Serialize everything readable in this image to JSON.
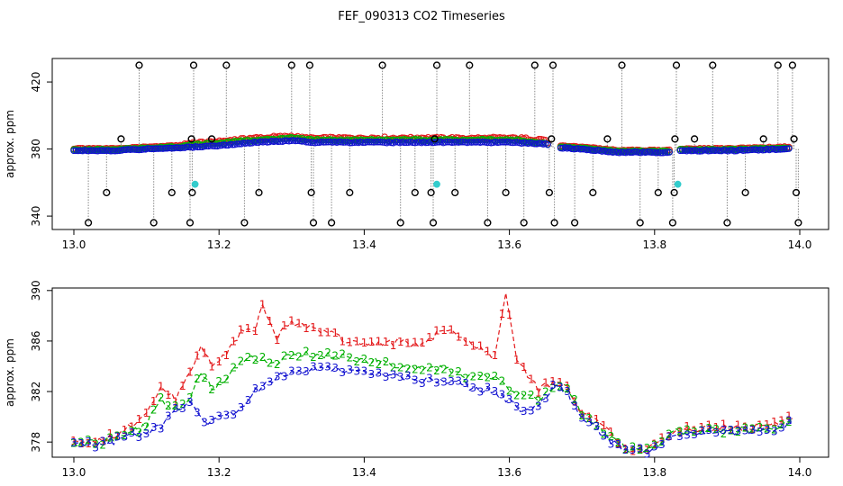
{
  "title": "FEF_090313  CO2 Timeseries",
  "colors": {
    "s1": "#e41a1c",
    "s2": "#00b000",
    "s3": "#1010d0",
    "black": "#000000",
    "cyan": "#33cccc",
    "guide": "#888888"
  },
  "chart_data": [
    {
      "type": "scatter",
      "ylabel": "approx. ppm",
      "xlim": [
        13.0,
        14.0
      ],
      "ylim": [
        332,
        434
      ],
      "x_ticks": [
        13.0,
        13.2,
        13.4,
        13.6,
        13.8,
        14.0
      ],
      "x_tick_labels": [
        "13.0",
        "13.2",
        "13.4",
        "13.6",
        "13.8",
        "14.0"
      ],
      "y_ticks": [
        340,
        380,
        420
      ],
      "y_tick_labels": [
        "340",
        "380",
        "420"
      ],
      "grid": false,
      "legend": "none",
      "outliers": [
        [
          13.02,
          336
        ],
        [
          13.045,
          354
        ],
        [
          13.065,
          386
        ],
        [
          13.09,
          430
        ],
        [
          13.11,
          336
        ],
        [
          13.135,
          354
        ],
        [
          13.16,
          336
        ],
        [
          13.163,
          354
        ],
        [
          13.165,
          430
        ],
        [
          13.162,
          386
        ],
        [
          13.19,
          386
        ],
        [
          13.21,
          430
        ],
        [
          13.235,
          336
        ],
        [
          13.255,
          354
        ],
        [
          13.3,
          430
        ],
        [
          13.325,
          430
        ],
        [
          13.33,
          336
        ],
        [
          13.327,
          354
        ],
        [
          13.355,
          336
        ],
        [
          13.38,
          354
        ],
        [
          13.425,
          430
        ],
        [
          13.45,
          336
        ],
        [
          13.47,
          354
        ],
        [
          13.495,
          336
        ],
        [
          13.5,
          430
        ],
        [
          13.492,
          354
        ],
        [
          13.497,
          386
        ],
        [
          13.525,
          354
        ],
        [
          13.545,
          430
        ],
        [
          13.57,
          336
        ],
        [
          13.595,
          354
        ],
        [
          13.62,
          336
        ],
        [
          13.635,
          430
        ],
        [
          13.655,
          354
        ],
        [
          13.66,
          430
        ],
        [
          13.662,
          336
        ],
        [
          13.658,
          386
        ],
        [
          13.69,
          336
        ],
        [
          13.715,
          354
        ],
        [
          13.735,
          386
        ],
        [
          13.755,
          430
        ],
        [
          13.78,
          336
        ],
        [
          13.805,
          354
        ],
        [
          13.825,
          336
        ],
        [
          13.83,
          430
        ],
        [
          13.827,
          354
        ],
        [
          13.828,
          386
        ],
        [
          13.855,
          386
        ],
        [
          13.88,
          430
        ],
        [
          13.9,
          336
        ],
        [
          13.925,
          354
        ],
        [
          13.95,
          386
        ],
        [
          13.97,
          430
        ],
        [
          13.99,
          430
        ],
        [
          13.995,
          354
        ],
        [
          13.998,
          336
        ],
        [
          13.992,
          386
        ]
      ],
      "cyan_points": [
        [
          13.167,
          359
        ],
        [
          13.5,
          359
        ],
        [
          13.832,
          359
        ]
      ]
    },
    {
      "type": "line",
      "ylabel": "approx. ppm",
      "xlim": [
        13.0,
        14.0
      ],
      "ylim": [
        376.8,
        390.2
      ],
      "x_ticks": [
        13.0,
        13.2,
        13.4,
        13.6,
        13.8,
        14.0
      ],
      "x_tick_labels": [
        "13.0",
        "13.2",
        "13.4",
        "13.6",
        "13.8",
        "14.0"
      ],
      "y_ticks": [
        378,
        382,
        386,
        390
      ],
      "y_tick_labels": [
        "378",
        "382",
        "386",
        "390"
      ],
      "grid": false,
      "legend": "none",
      "series": [
        {
          "marker": "1",
          "color_key": "s1",
          "knots": [
            [
              13.0,
              377.9
            ],
            [
              13.04,
              378.2
            ],
            [
              13.07,
              378.9
            ],
            [
              13.1,
              380.2
            ],
            [
              13.12,
              382.5
            ],
            [
              13.14,
              381.3
            ],
            [
              13.16,
              383.5
            ],
            [
              13.175,
              385.7
            ],
            [
              13.19,
              384.2
            ],
            [
              13.21,
              385.0
            ],
            [
              13.23,
              386.7
            ],
            [
              13.25,
              386.8
            ],
            [
              13.26,
              388.9
            ],
            [
              13.28,
              386.3
            ],
            [
              13.3,
              387.6
            ],
            [
              13.32,
              387.0
            ],
            [
              13.35,
              386.9
            ],
            [
              13.38,
              385.9
            ],
            [
              13.42,
              385.7
            ],
            [
              13.45,
              386.0
            ],
            [
              13.48,
              385.6
            ],
            [
              13.51,
              387.1
            ],
            [
              13.54,
              385.9
            ],
            [
              13.58,
              384.8
            ],
            [
              13.595,
              389.7
            ],
            [
              13.61,
              384.5
            ],
            [
              13.625,
              383.3
            ],
            [
              13.64,
              382.1
            ],
            [
              13.66,
              382.8
            ],
            [
              13.68,
              382.4
            ],
            [
              13.7,
              380.2
            ],
            [
              13.72,
              379.6
            ],
            [
              13.74,
              378.6
            ],
            [
              13.76,
              377.4
            ],
            [
              13.79,
              377.4
            ],
            [
              13.82,
              378.6
            ],
            [
              13.83,
              378.9
            ],
            [
              13.88,
              379.1
            ],
            [
              13.93,
              379.2
            ],
            [
              13.96,
              379.4
            ],
            [
              13.99,
              379.9
            ]
          ]
        },
        {
          "marker": "2",
          "color_key": "s2",
          "knots": [
            [
              13.0,
              377.8
            ],
            [
              13.04,
              378.0
            ],
            [
              13.07,
              378.5
            ],
            [
              13.1,
              379.3
            ],
            [
              13.12,
              381.5
            ],
            [
              13.14,
              380.6
            ],
            [
              13.16,
              381.3
            ],
            [
              13.175,
              383.6
            ],
            [
              13.19,
              382.2
            ],
            [
              13.21,
              383.1
            ],
            [
              13.23,
              384.4
            ],
            [
              13.25,
              384.6
            ],
            [
              13.28,
              384.2
            ],
            [
              13.3,
              384.9
            ],
            [
              13.32,
              385.0
            ],
            [
              13.35,
              384.9
            ],
            [
              13.38,
              384.6
            ],
            [
              13.42,
              384.4
            ],
            [
              13.45,
              384.0
            ],
            [
              13.48,
              383.7
            ],
            [
              13.51,
              383.8
            ],
            [
              13.54,
              383.3
            ],
            [
              13.58,
              383.0
            ],
            [
              13.6,
              382.3
            ],
            [
              13.62,
              381.5
            ],
            [
              13.64,
              381.4
            ],
            [
              13.66,
              382.5
            ],
            [
              13.68,
              382.1
            ],
            [
              13.7,
              380.2
            ],
            [
              13.72,
              379.3
            ],
            [
              13.74,
              378.3
            ],
            [
              13.76,
              377.5
            ],
            [
              13.79,
              377.4
            ],
            [
              13.82,
              378.4
            ],
            [
              13.83,
              378.8
            ],
            [
              13.88,
              378.9
            ],
            [
              13.93,
              379.0
            ],
            [
              13.96,
              379.1
            ],
            [
              13.99,
              379.7
            ]
          ]
        },
        {
          "marker": "3",
          "color_key": "s3",
          "knots": [
            [
              13.0,
              377.7
            ],
            [
              13.04,
              377.8
            ],
            [
              13.07,
              378.3
            ],
            [
              13.1,
              378.8
            ],
            [
              13.12,
              379.2
            ],
            [
              13.14,
              380.4
            ],
            [
              13.16,
              381.2
            ],
            [
              13.175,
              379.8
            ],
            [
              13.19,
              379.6
            ],
            [
              13.21,
              380.0
            ],
            [
              13.23,
              380.7
            ],
            [
              13.25,
              382.0
            ],
            [
              13.28,
              383.2
            ],
            [
              13.3,
              383.5
            ],
            [
              13.32,
              383.7
            ],
            [
              13.35,
              383.9
            ],
            [
              13.38,
              383.6
            ],
            [
              13.42,
              383.4
            ],
            [
              13.45,
              383.1
            ],
            [
              13.48,
              382.8
            ],
            [
              13.51,
              382.9
            ],
            [
              13.54,
              382.4
            ],
            [
              13.58,
              382.0
            ],
            [
              13.6,
              381.2
            ],
            [
              13.62,
              380.5
            ],
            [
              13.64,
              381.0
            ],
            [
              13.66,
              382.4
            ],
            [
              13.68,
              381.9
            ],
            [
              13.7,
              379.8
            ],
            [
              13.72,
              379.1
            ],
            [
              13.74,
              378.1
            ],
            [
              13.76,
              377.4
            ],
            [
              13.79,
              377.3
            ],
            [
              13.82,
              378.2
            ],
            [
              13.83,
              378.7
            ],
            [
              13.88,
              378.8
            ],
            [
              13.93,
              378.9
            ],
            [
              13.96,
              379.0
            ],
            [
              13.99,
              379.5
            ]
          ]
        }
      ]
    }
  ]
}
